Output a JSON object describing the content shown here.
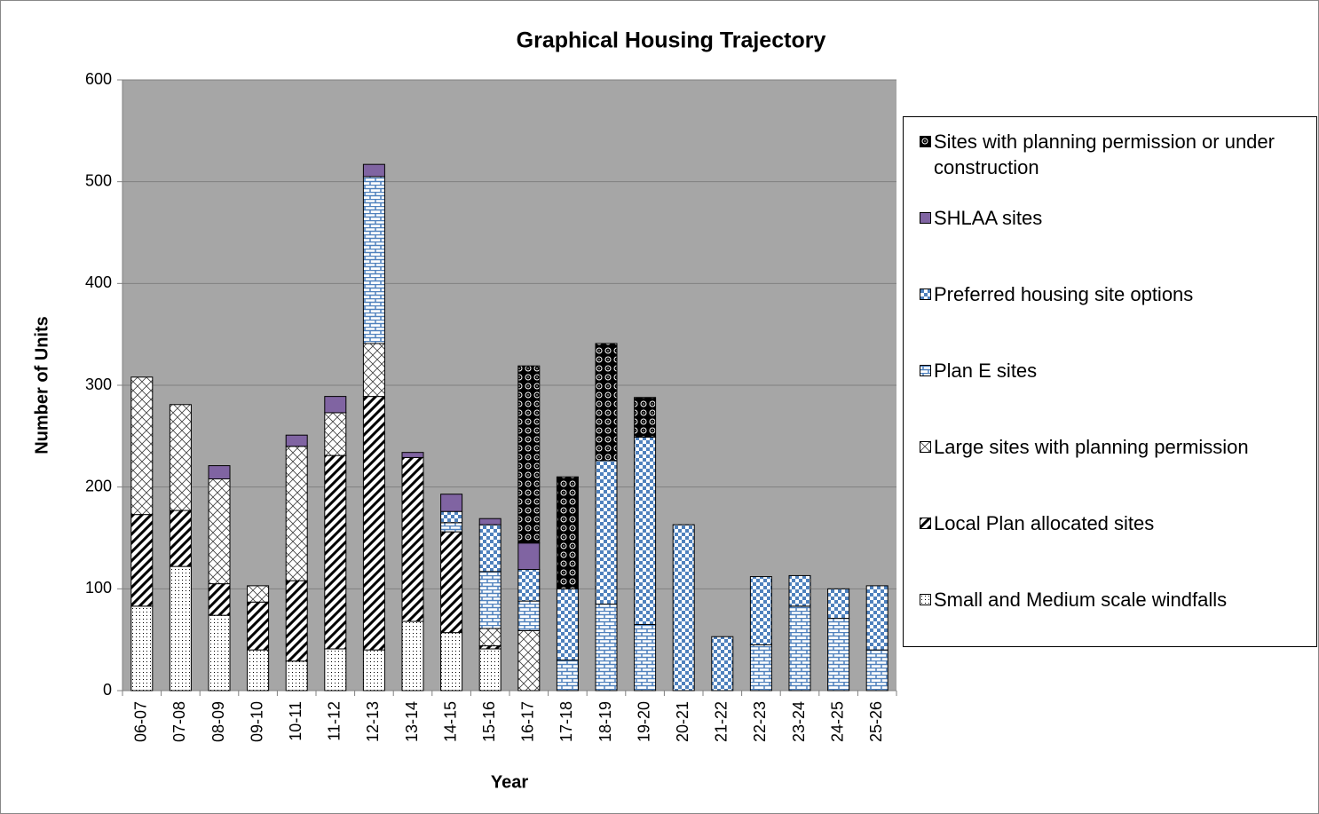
{
  "chart_data": {
    "type": "stacked_bar",
    "title": "Graphical Housing Trajectory",
    "x_label": "Year",
    "y_label": "Number of Units",
    "categories": [
      "06-07",
      "07-08",
      "08-09",
      "09-10",
      "10-11",
      "11-12",
      "12-13",
      "13-14",
      "14-15",
      "15-16",
      "16-17",
      "17-18",
      "18-19",
      "19-20",
      "20-21",
      "21-22",
      "22-23",
      "23-24",
      "24-25",
      "25-26"
    ],
    "series": [
      {
        "name": "Small and Medium scale windfalls",
        "color": "#ffffff",
        "values": [
          83,
          122,
          74,
          40,
          29,
          41,
          40,
          68,
          57,
          41,
          0,
          0,
          0,
          0,
          0,
          0,
          0,
          0,
          0,
          0
        ]
      },
      {
        "name": "Local Plan allocated sites",
        "color": "#000000",
        "values": [
          90,
          55,
          31,
          47,
          79,
          190,
          249,
          161,
          99,
          3,
          0,
          0,
          0,
          0,
          0,
          0,
          0,
          0,
          0,
          0
        ]
      },
      {
        "name": "Large sites with planning permission",
        "color": "#404040",
        "values": [
          135,
          104,
          103,
          16,
          132,
          42,
          52,
          0,
          0,
          17,
          59,
          0,
          0,
          0,
          0,
          0,
          0,
          0,
          0,
          0
        ]
      },
      {
        "name": "Plan E sites",
        "color": "#4f81bd",
        "values": [
          0,
          0,
          0,
          0,
          0,
          0,
          164,
          0,
          9,
          56,
          29,
          30,
          85,
          65,
          0,
          0,
          45,
          83,
          71,
          40
        ]
      },
      {
        "name": "Preferred housing site options",
        "color": "#4f81bd",
        "values": [
          0,
          0,
          0,
          0,
          0,
          0,
          0,
          0,
          11,
          46,
          31,
          70,
          141,
          184,
          163,
          53,
          67,
          30,
          29,
          63
        ]
      },
      {
        "name": "SHLAA sites",
        "color": "#8064a2",
        "values": [
          0,
          0,
          13,
          0,
          11,
          16,
          12,
          5,
          17,
          6,
          26,
          0,
          0,
          0,
          0,
          0,
          0,
          0,
          0,
          0
        ]
      },
      {
        "name": "Sites with planning permission or under construction",
        "color": "#000000",
        "values": [
          0,
          0,
          0,
          0,
          0,
          0,
          0,
          0,
          0,
          0,
          174,
          110,
          115,
          39,
          0,
          0,
          0,
          0,
          0,
          0
        ]
      }
    ],
    "ylim": [
      0,
      600
    ],
    "yticks": [
      0,
      100,
      200,
      300,
      400,
      500,
      600
    ],
    "grid": true,
    "legend": "right"
  }
}
